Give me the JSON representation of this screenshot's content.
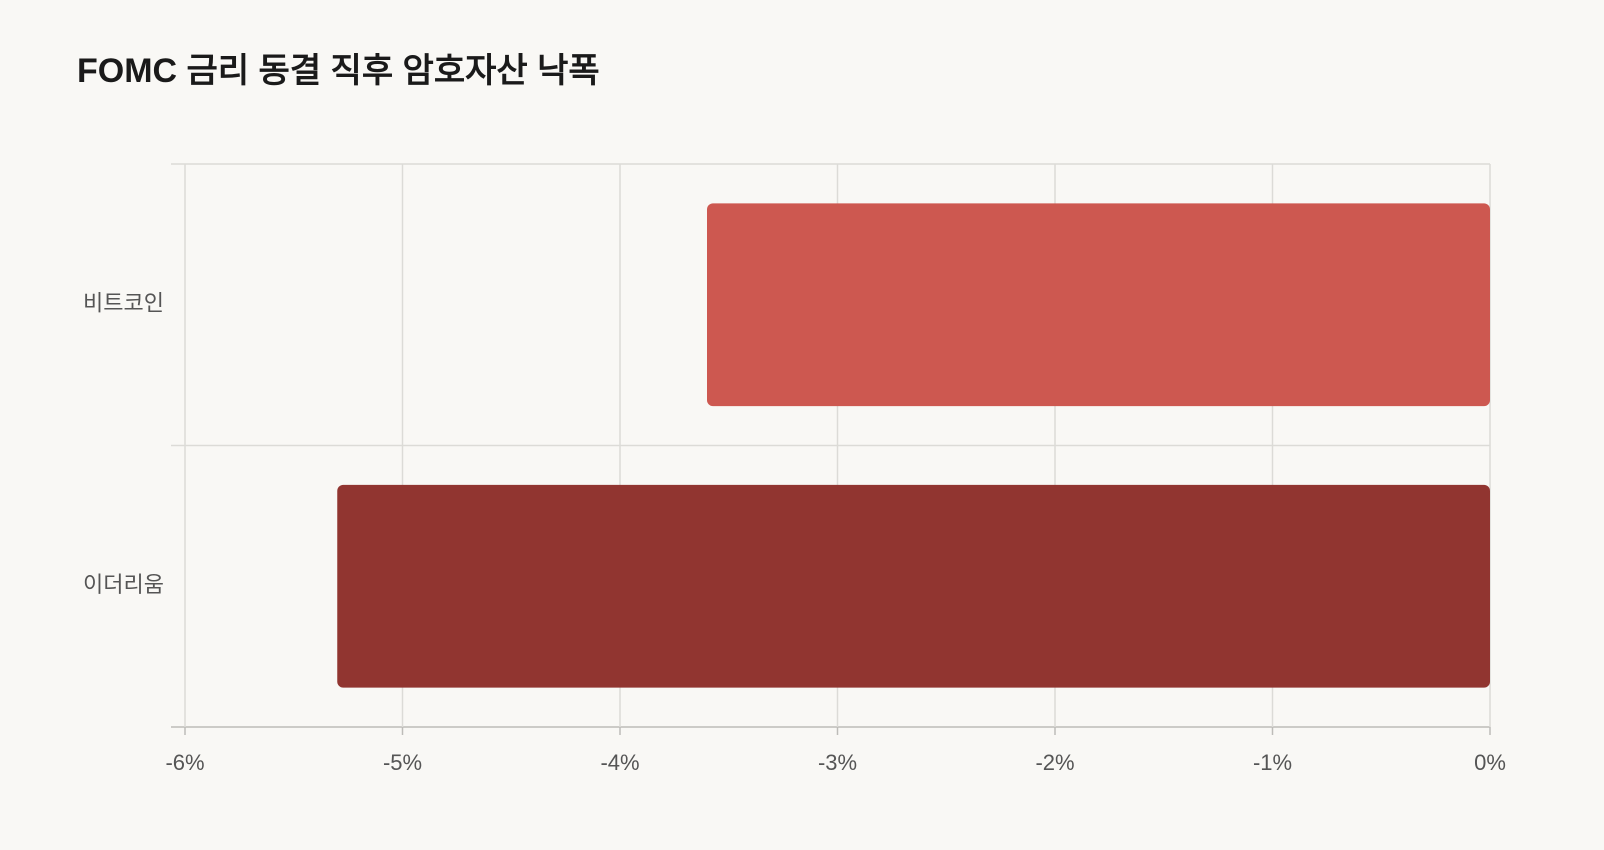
{
  "chart_data": {
    "type": "barh",
    "title": "FOMC 금리 동결 직후 암호자산 낙폭",
    "categories": [
      "비트코인",
      "이더리움"
    ],
    "values": [
      -3.6,
      -5.3
    ],
    "colors": [
      "#cd5850",
      "#913530"
    ],
    "xlim": [
      -6,
      0
    ],
    "xticks": [
      {
        "value": -6,
        "label": "-6%"
      },
      {
        "value": -5,
        "label": "-5%"
      },
      {
        "value": -4,
        "label": "-4%"
      },
      {
        "value": -3,
        "label": "-3%"
      },
      {
        "value": -2,
        "label": "-2%"
      },
      {
        "value": -1,
        "label": "-1%"
      },
      {
        "value": 0,
        "label": "0%"
      }
    ],
    "grid": true
  }
}
